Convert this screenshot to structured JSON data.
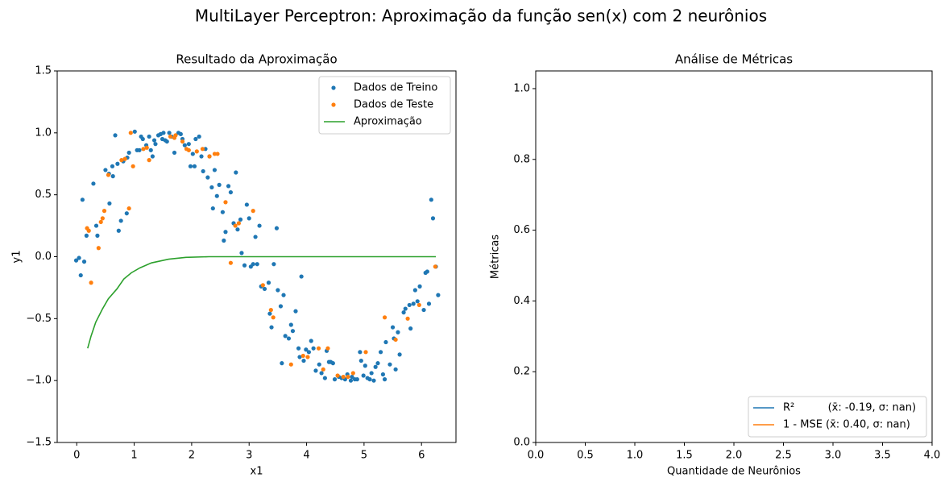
{
  "title": "MultiLayer Perceptron: Aproximação da função sen(x) com 2 neurônios",
  "chart_data": [
    {
      "type": "scatter",
      "title": "Resultado da Aproximação",
      "x_label": "x1",
      "y_label": "y1",
      "xlim": [
        -0.34,
        6.6
      ],
      "ylim": [
        -1.5,
        1.5
      ],
      "xticks": [
        0,
        1,
        2,
        3,
        4,
        5,
        6
      ],
      "yticks": [
        {
          "value": -1.5,
          "label": "−1.5"
        },
        {
          "value": -1,
          "label": "−1.0"
        },
        {
          "value": -0.5,
          "label": "−0.5"
        },
        {
          "value": 0,
          "label": "0.0"
        },
        {
          "value": 0.5,
          "label": "0.5"
        },
        {
          "value": 1,
          "label": "1.0"
        },
        {
          "value": 1.5,
          "label": "1.5"
        }
      ],
      "legend": "upper right",
      "series": [
        {
          "name": "Dados de Treino",
          "color": "#1f77b4",
          "type": "scatter",
          "x": [
            -0.01,
            0.04,
            0.07,
            0.1,
            0.13,
            0.17,
            0.29,
            0.34,
            0.36,
            0.5,
            0.56,
            0.57,
            0.62,
            0.63,
            0.67,
            0.71,
            0.73,
            0.77,
            0.81,
            0.87,
            0.88,
            0.91,
            1.01,
            1.05,
            1.09,
            1.12,
            1.15,
            1.21,
            1.26,
            1.29,
            1.32,
            1.35,
            1.37,
            1.42,
            1.46,
            1.49,
            1.51,
            1.54,
            1.57,
            1.61,
            1.65,
            1.7,
            1.77,
            1.81,
            1.84,
            1.88,
            1.95,
            1.98,
            2.02,
            2.05,
            2.07,
            2.13,
            2.17,
            2.2,
            2.24,
            2.28,
            2.31,
            2.35,
            2.37,
            2.4,
            2.44,
            2.48,
            2.54,
            2.56,
            2.59,
            2.64,
            2.68,
            2.73,
            2.77,
            2.8,
            2.85,
            2.87,
            2.92,
            2.96,
            3.0,
            3.03,
            3.07,
            3.11,
            3.14,
            3.18,
            3.21,
            3.27,
            3.34,
            3.36,
            3.39,
            3.43,
            3.48,
            3.5,
            3.55,
            3.57,
            3.6,
            3.63,
            3.69,
            3.73,
            3.76,
            3.81,
            3.86,
            3.88,
            3.91,
            3.95,
            3.99,
            4.04,
            4.08,
            4.12,
            4.16,
            4.22,
            4.26,
            4.32,
            4.35,
            4.39,
            4.42,
            4.46,
            4.49,
            4.56,
            4.61,
            4.67,
            4.71,
            4.77,
            4.79,
            4.84,
            4.88,
            4.93,
            4.95,
            4.99,
            5.02,
            5.06,
            5.1,
            5.13,
            5.17,
            5.2,
            5.24,
            5.29,
            5.33,
            5.36,
            5.38,
            5.45,
            5.5,
            5.52,
            5.55,
            5.59,
            5.62,
            5.69,
            5.72,
            5.79,
            5.81,
            5.86,
            5.89,
            5.93,
            5.97,
            6.04,
            6.07,
            6.1,
            6.13,
            6.17,
            6.2,
            6.25,
            6.29
          ],
          "values": [
            -0.03,
            -0.01,
            -0.15,
            0.46,
            -0.04,
            0.17,
            0.59,
            0.25,
            0.17,
            0.7,
            0.67,
            0.43,
            0.73,
            0.65,
            0.98,
            0.75,
            0.21,
            0.29,
            0.77,
            0.35,
            0.8,
            0.84,
            1.01,
            0.86,
            0.86,
            0.97,
            0.95,
            0.9,
            0.97,
            0.86,
            0.81,
            0.94,
            0.91,
            0.98,
            0.99,
            0.95,
            1.0,
            0.94,
            0.93,
            1.0,
            0.97,
            0.84,
            1.0,
            0.99,
            0.95,
            0.9,
            0.91,
            0.73,
            0.83,
            0.73,
            0.95,
            0.97,
            0.81,
            0.69,
            0.87,
            0.64,
            0.81,
            0.56,
            0.39,
            0.7,
            0.49,
            0.58,
            0.36,
            0.13,
            0.2,
            0.57,
            0.52,
            0.27,
            0.68,
            0.22,
            0.3,
            0.03,
            -0.07,
            0.42,
            0.31,
            -0.08,
            -0.06,
            0.16,
            -0.06,
            0.25,
            -0.24,
            -0.26,
            -0.21,
            -0.46,
            -0.57,
            -0.06,
            0.23,
            -0.27,
            -0.4,
            -0.86,
            -0.31,
            -0.64,
            -0.66,
            -0.55,
            -0.6,
            -0.44,
            -0.74,
            -0.81,
            -0.16,
            -0.84,
            -0.75,
            -0.77,
            -0.68,
            -0.74,
            -0.92,
            -0.87,
            -0.94,
            -0.98,
            -0.76,
            -0.85,
            -0.85,
            -0.86,
            -0.99,
            -0.97,
            -0.98,
            -0.99,
            -0.95,
            -1.0,
            -0.97,
            -0.99,
            -0.99,
            -0.77,
            -0.84,
            -0.96,
            -0.88,
            -0.98,
            -0.99,
            -0.94,
            -1.0,
            -0.89,
            -0.86,
            -0.77,
            -0.95,
            -0.99,
            -0.69,
            -0.87,
            -0.57,
            -0.66,
            -0.91,
            -0.61,
            -0.79,
            -0.45,
            -0.42,
            -0.39,
            -0.58,
            -0.38,
            -0.27,
            -0.36,
            -0.24,
            -0.43,
            -0.13,
            -0.12,
            -0.38,
            0.46,
            0.31,
            -0.08,
            -0.31
          ]
        },
        {
          "name": "Dados de Teste",
          "color": "#ff7f0e",
          "type": "scatter",
          "x": [
            0.18,
            0.21,
            0.25,
            0.38,
            0.42,
            0.45,
            0.48,
            0.55,
            0.78,
            0.84,
            0.91,
            0.94,
            0.98,
            1.16,
            1.22,
            1.26,
            1.63,
            1.7,
            1.72,
            1.84,
            1.91,
            1.95,
            2.09,
            2.19,
            2.31,
            2.4,
            2.45,
            2.59,
            2.68,
            2.76,
            2.82,
            3.07,
            3.24,
            3.38,
            3.42,
            3.73,
            3.94,
            4.02,
            4.21,
            4.29,
            4.37,
            4.54,
            4.64,
            4.72,
            4.81,
            5.03,
            5.36,
            5.55,
            5.76,
            5.96,
            6.24
          ],
          "values": [
            0.23,
            0.21,
            -0.21,
            0.07,
            0.28,
            0.31,
            0.37,
            0.66,
            0.78,
            0.79,
            0.39,
            1.0,
            0.73,
            0.87,
            0.88,
            0.78,
            0.97,
            0.96,
            0.98,
            0.93,
            0.87,
            0.86,
            0.85,
            0.87,
            0.81,
            0.83,
            0.83,
            0.44,
            -0.05,
            0.25,
            0.27,
            0.37,
            -0.23,
            -0.43,
            -0.49,
            -0.87,
            -0.8,
            -0.81,
            -0.74,
            -0.91,
            -0.74,
            -0.96,
            -0.97,
            -0.97,
            -0.94,
            -0.77,
            -0.49,
            -0.67,
            -0.5,
            -0.39,
            -0.08
          ]
        },
        {
          "name": "Aproximação",
          "color": "#2ca02c",
          "type": "line",
          "x": [
            0.19,
            0.25,
            0.33,
            0.45,
            0.55,
            0.7,
            0.82,
            0.95,
            1.1,
            1.3,
            1.6,
            1.9,
            2.3,
            2.8,
            6.25
          ],
          "values": [
            -0.74,
            -0.64,
            -0.53,
            -0.42,
            -0.34,
            -0.26,
            -0.18,
            -0.13,
            -0.09,
            -0.05,
            -0.02,
            -0.005,
            0,
            0,
            0
          ]
        }
      ]
    },
    {
      "type": "line",
      "title": "Análise de Métricas",
      "x_label": "Quantidade de Neurônios",
      "y_label": "Métricas",
      "xlim": [
        0,
        4
      ],
      "ylim": [
        0,
        1.05
      ],
      "xticks": [
        {
          "value": 0,
          "label": "0.0"
        },
        0.5,
        {
          "value": 1,
          "label": "1.0"
        },
        1.5,
        {
          "value": 2,
          "label": "2.0"
        },
        2.5,
        {
          "value": 3,
          "label": "3.0"
        },
        3.5,
        {
          "value": 4,
          "label": "4.0"
        }
      ],
      "yticks": [
        {
          "value": 0,
          "label": "0.0"
        },
        0.2,
        0.4,
        0.6,
        0.8,
        {
          "value": 1,
          "label": "1.0"
        }
      ],
      "legend": "lower right",
      "series": [
        {
          "name": "R²          (x̄: -0.19, σ: nan)",
          "color": "#1f77b4",
          "type": "line",
          "x": [],
          "values": []
        },
        {
          "name": "1 - MSE (x̄: 0.40, σ: nan)",
          "color": "#ff7f0e",
          "type": "line",
          "x": [],
          "values": []
        }
      ]
    }
  ]
}
